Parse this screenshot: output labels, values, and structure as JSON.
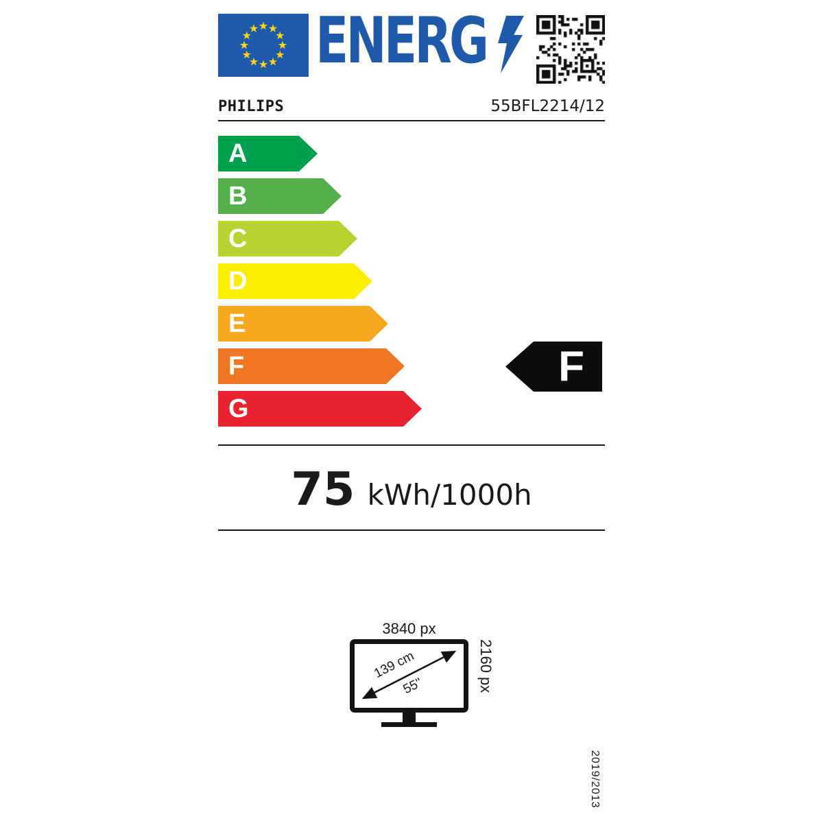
{
  "header": {
    "wordmark": "ENERG",
    "icons": {
      "flag": "eu-flag-icon",
      "bolt": "lightning-bolt-icon",
      "qr": "qr-code"
    }
  },
  "brand": {
    "supplier": "PHILIPS",
    "model": "55BFL2214/12"
  },
  "energy_scale": {
    "classes": [
      {
        "label": "A",
        "color": "#00A14E"
      },
      {
        "label": "B",
        "color": "#54B04A"
      },
      {
        "label": "C",
        "color": "#B8D433"
      },
      {
        "label": "D",
        "color": "#FCEE00"
      },
      {
        "label": "E",
        "color": "#F7A81C"
      },
      {
        "label": "F",
        "color": "#EF7622"
      },
      {
        "label": "G",
        "color": "#E8232D"
      }
    ]
  },
  "rating": {
    "class_label": "F",
    "background": "#0D0D0D"
  },
  "consumption": {
    "value": "75",
    "unit": "kWh/1000h"
  },
  "screen": {
    "horizontal_resolution": "3840 px",
    "vertical_resolution": "2160 px",
    "diagonal_cm": "139 cm",
    "diagonal_inches": "55\""
  },
  "regulation": "2019/2013",
  "colors": {
    "eu_blue": "#1E5AA9",
    "star_yellow": "#FFD617",
    "ink": "#1A1A1A"
  }
}
